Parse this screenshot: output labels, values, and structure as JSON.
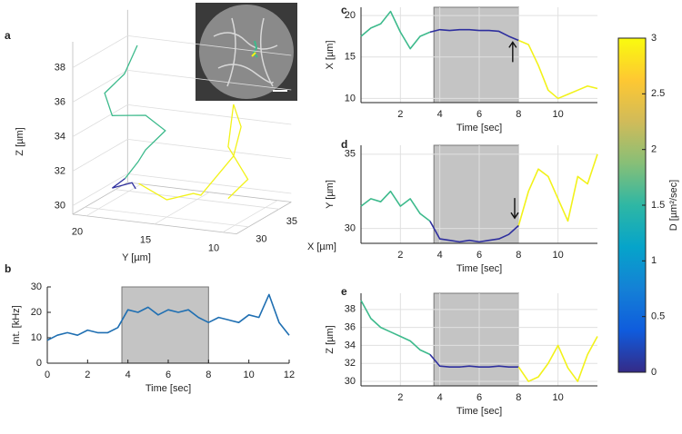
{
  "chart_data": [
    {
      "panel": "a",
      "type": "line3d",
      "xlabel": "X [µm]",
      "ylabel": "Y [µm]",
      "zlabel": "Z [µm]",
      "xlim": [
        28,
        37
      ],
      "ylim": [
        21,
        9
      ],
      "zlim": [
        29.5,
        39.5
      ],
      "xticks": [
        30,
        35
      ],
      "yticks": [
        20,
        15,
        10
      ],
      "zticks": [
        30,
        32,
        34,
        36,
        38
      ],
      "grid": true,
      "series": [
        {
          "color": "#3dba8c",
          "x": [
            33,
            32,
            31,
            30,
            31,
            32,
            31,
            32,
            31
          ],
          "y": [
            18.5,
            19,
            20,
            19,
            17,
            16,
            17,
            18,
            18.5
          ],
          "z": [
            38.5,
            37,
            36,
            35,
            35,
            34,
            33,
            32,
            31.2
          ]
        },
        {
          "color": "#2e2f9e",
          "x": [
            31,
            30,
            31,
            30.5,
            31
          ],
          "y": [
            18.5,
            19,
            18,
            17.5,
            18
          ],
          "z": [
            31.2,
            30.8,
            31,
            30.8,
            31
          ]
        },
        {
          "color": "#f2f21a",
          "x": [
            31,
            30,
            31,
            30,
            32,
            31,
            32,
            30,
            31,
            30
          ],
          "y": [
            17.5,
            15,
            13.5,
            12.5,
            11,
            10,
            11,
            10.5,
            9.5,
            10.5
          ],
          "z": [
            31,
            30.5,
            30.8,
            31,
            33,
            35,
            36,
            34,
            32,
            31
          ]
        }
      ]
    },
    {
      "panel": "b",
      "type": "line",
      "xlabel": "Time [sec]",
      "ylabel": "Int. [kHz]",
      "x": [
        0,
        0.5,
        1,
        1.5,
        2,
        2.5,
        3,
        3.5,
        4,
        4.5,
        5,
        5.5,
        6,
        6.5,
        7,
        7.5,
        8,
        8.5,
        9,
        9.5,
        10,
        10.5,
        11,
        11.5,
        12
      ],
      "series": [
        {
          "color": "#1f6fb2",
          "values": [
            9,
            11,
            12,
            11,
            13,
            12,
            12,
            14,
            21,
            20,
            22,
            19,
            21,
            20,
            21,
            18,
            16,
            18,
            17,
            16,
            19,
            18,
            27,
            16,
            11
          ]
        }
      ],
      "xlim": [
        0,
        12
      ],
      "ylim": [
        0,
        30
      ],
      "xticks": [
        0,
        2,
        4,
        6,
        8,
        10,
        12
      ],
      "yticks": [
        0,
        10,
        20,
        30
      ],
      "grid": false,
      "shaded": [
        3.7,
        8
      ]
    },
    {
      "panel": "c",
      "type": "line",
      "xlabel": "Time [sec]",
      "ylabel": "X [µm]",
      "x": [
        0,
        0.5,
        1,
        1.5,
        2,
        2.5,
        3,
        3.5,
        4,
        4.5,
        5,
        5.5,
        6,
        6.5,
        7,
        7.5,
        8,
        8.5,
        9,
        9.5,
        10,
        10.5,
        11,
        11.5,
        12
      ],
      "series": [
        {
          "color": "#3dba8c",
          "values": [
            17.5,
            18.5,
            19,
            20.5,
            18,
            16,
            17.5,
            18,
            null,
            null,
            null,
            null,
            null,
            null,
            null,
            null,
            null,
            null,
            null,
            null,
            null,
            null,
            null,
            null,
            null
          ]
        },
        {
          "color": "#2e2f9e",
          "values": [
            null,
            null,
            null,
            null,
            null,
            null,
            null,
            18,
            18.3,
            18.2,
            18.3,
            18.3,
            18.2,
            18.2,
            18.1,
            17.5,
            17,
            null,
            null,
            null,
            null,
            null,
            null,
            null,
            null
          ]
        },
        {
          "color": "#f2f21a",
          "values": [
            null,
            null,
            null,
            null,
            null,
            null,
            null,
            null,
            null,
            null,
            null,
            null,
            null,
            null,
            null,
            null,
            17,
            16.5,
            14,
            11,
            10,
            10.5,
            11,
            11.5,
            11.2
          ]
        }
      ],
      "xlim": [
        0,
        12
      ],
      "ylim": [
        9.5,
        21
      ],
      "xticks": [
        2,
        4,
        6,
        8,
        10
      ],
      "yticks": [
        10,
        15,
        20
      ],
      "grid": true,
      "shaded": [
        3.7,
        8
      ],
      "arrows": [
        {
          "x": 7.7,
          "y": 16.8,
          "direction": "up"
        }
      ]
    },
    {
      "panel": "d",
      "type": "line",
      "xlabel": "Time [sec]",
      "ylabel": "Y [µm]",
      "x": [
        0,
        0.5,
        1,
        1.5,
        2,
        2.5,
        3,
        3.5,
        4,
        4.5,
        5,
        5.5,
        6,
        6.5,
        7,
        7.5,
        8,
        8.5,
        9,
        9.5,
        10,
        10.5,
        11,
        11.5,
        12
      ],
      "series": [
        {
          "color": "#3dba8c",
          "values": [
            31.5,
            32,
            31.8,
            32.5,
            31.5,
            32,
            31,
            30.5,
            null,
            null,
            null,
            null,
            null,
            null,
            null,
            null,
            null,
            null,
            null,
            null,
            null,
            null,
            null,
            null,
            null
          ]
        },
        {
          "color": "#2e2f9e",
          "values": [
            null,
            null,
            null,
            null,
            null,
            null,
            null,
            30.5,
            29.3,
            29.2,
            29.1,
            29.2,
            29.1,
            29.2,
            29.3,
            29.6,
            30.2,
            null,
            null,
            null,
            null,
            null,
            null,
            null,
            null
          ]
        },
        {
          "color": "#f2f21a",
          "values": [
            null,
            null,
            null,
            null,
            null,
            null,
            null,
            null,
            null,
            null,
            null,
            null,
            null,
            null,
            null,
            null,
            30.2,
            32.5,
            34,
            33.5,
            32,
            30.5,
            33.5,
            33,
            35
          ]
        }
      ],
      "xlim": [
        0,
        12
      ],
      "ylim": [
        29,
        35.6
      ],
      "xticks": [
        2,
        4,
        6,
        8,
        10
      ],
      "yticks": [
        30,
        35
      ],
      "grid": true,
      "shaded": [
        3.7,
        8
      ],
      "arrows": [
        {
          "x": 7.8,
          "y": 30.7,
          "direction": "down"
        }
      ]
    },
    {
      "panel": "e",
      "type": "line",
      "xlabel": "Time [sec]",
      "ylabel": "Z [µm]",
      "x": [
        0,
        0.5,
        1,
        1.5,
        2,
        2.5,
        3,
        3.5,
        4,
        4.5,
        5,
        5.5,
        6,
        6.5,
        7,
        7.5,
        8,
        8.5,
        9,
        9.5,
        10,
        10.5,
        11,
        11.5,
        12
      ],
      "series": [
        {
          "color": "#3dba8c",
          "values": [
            39,
            37,
            36,
            35.5,
            35,
            34.5,
            33.5,
            33,
            null,
            null,
            null,
            null,
            null,
            null,
            null,
            null,
            null,
            null,
            null,
            null,
            null,
            null,
            null,
            null,
            null
          ]
        },
        {
          "color": "#2e2f9e",
          "values": [
            null,
            null,
            null,
            null,
            null,
            null,
            null,
            33,
            31.7,
            31.6,
            31.6,
            31.7,
            31.6,
            31.6,
            31.7,
            31.6,
            31.6,
            null,
            null,
            null,
            null,
            null,
            null,
            null,
            null
          ]
        },
        {
          "color": "#f2f21a",
          "values": [
            null,
            null,
            null,
            null,
            null,
            null,
            null,
            null,
            null,
            null,
            null,
            null,
            null,
            null,
            null,
            null,
            31.6,
            30,
            30.5,
            32,
            34,
            31.5,
            30,
            33,
            35
          ]
        }
      ],
      "xlim": [
        0,
        12
      ],
      "ylim": [
        29.5,
        39.8
      ],
      "xticks": [
        2,
        4,
        6,
        8,
        10
      ],
      "yticks": [
        30,
        32,
        34,
        36,
        38
      ],
      "grid": true,
      "shaded": [
        3.7,
        8
      ]
    },
    {
      "type": "colorbar",
      "ylabel": "D [µm²/sec]",
      "ylim": [
        0,
        3
      ],
      "yticks": [
        0,
        0.5,
        1,
        1.5,
        2,
        2.5,
        3
      ],
      "colors": [
        "#352a87",
        "#0f5cdd",
        "#1481d6",
        "#06a4ca",
        "#2eb7a4",
        "#87bf77",
        "#d1bb59",
        "#fec832",
        "#f9fb0e"
      ]
    }
  ]
}
